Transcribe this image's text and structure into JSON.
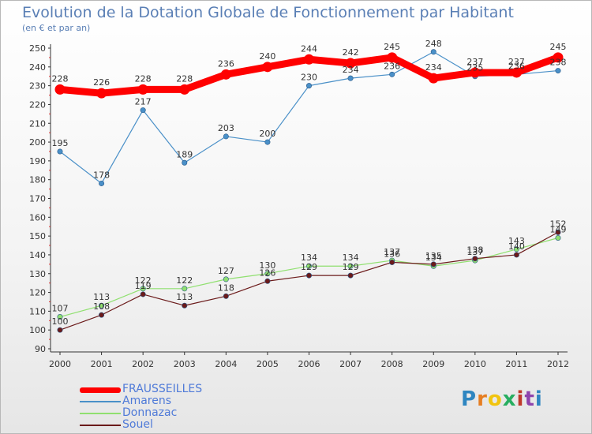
{
  "header": {
    "title": "Evolution de la Dotation Globale de Fonctionnement par Habitant",
    "subtitle": "(en € et par an)"
  },
  "logo": {
    "letters": [
      "P",
      "r",
      "o",
      "x",
      "i",
      "t",
      "i"
    ],
    "colors": [
      "#2e86c1",
      "#e67e22",
      "#f1c40f",
      "#27ae60",
      "#c0392b",
      "#8e44ad",
      "#2e86c1"
    ]
  },
  "chart_data": {
    "type": "line",
    "title": "Evolution de la Dotation Globale de Fonctionnement par Habitant",
    "subtitle": "(en € et par an)",
    "x": [
      "2000",
      "2001",
      "2002",
      "2003",
      "2004",
      "2005",
      "2006",
      "2007",
      "2008",
      "2009",
      "2010",
      "2011",
      "2012"
    ],
    "ylim": [
      90,
      250
    ],
    "yticks": [
      90,
      100,
      110,
      120,
      130,
      140,
      150,
      160,
      170,
      180,
      190,
      200,
      210,
      220,
      230,
      240,
      250
    ],
    "grid": false,
    "legend_position": "bottom-left",
    "series": [
      {
        "name": "FRAUSSEILLES",
        "color": "#ff0000",
        "values": [
          228,
          226,
          228,
          228,
          236,
          240,
          244,
          242,
          245,
          234,
          237,
          237,
          245
        ]
      },
      {
        "name": "Amarens",
        "color": "#4a90c8",
        "values": [
          195,
          178,
          217,
          189,
          203,
          200,
          230,
          234,
          236,
          248,
          235,
          236,
          238
        ]
      },
      {
        "name": "Donnazac",
        "color": "#90e070",
        "values": [
          107,
          113,
          122,
          122,
          127,
          130,
          134,
          134,
          137,
          134,
          137,
          143,
          149
        ]
      },
      {
        "name": "Souel",
        "color": "#6b1a1a",
        "values": [
          100,
          108,
          119,
          113,
          118,
          126,
          129,
          129,
          136,
          135,
          138,
          140,
          152
        ]
      }
    ]
  }
}
